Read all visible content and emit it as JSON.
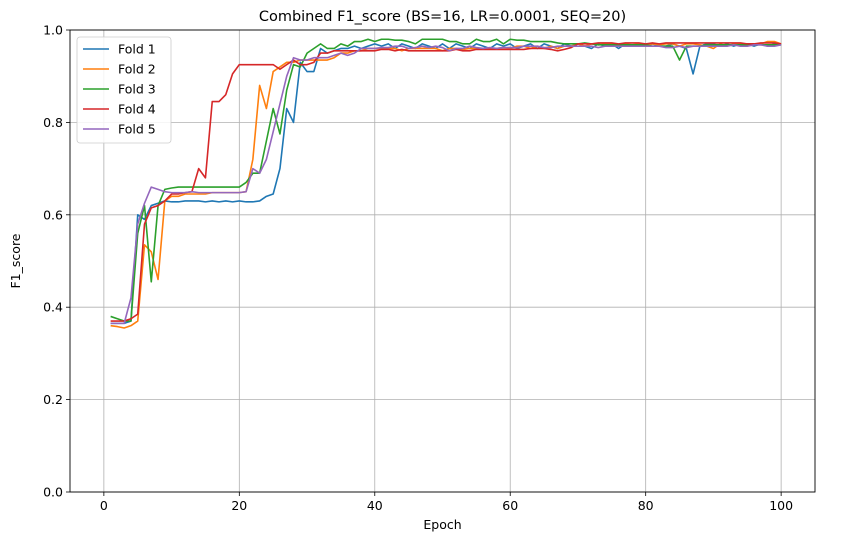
{
  "chart_data": {
    "type": "line",
    "title": "Combined F1_score (BS=16, LR=0.0001, SEQ=20)",
    "xlabel": "Epoch",
    "ylabel": "F1_score",
    "xlim": [
      -5,
      105
    ],
    "ylim": [
      0.0,
      1.0
    ],
    "xticks": [
      0,
      20,
      40,
      60,
      80,
      100
    ],
    "yticks": [
      0.0,
      0.2,
      0.4,
      0.6,
      0.8,
      1.0
    ],
    "ytick_labels": [
      "0.0",
      "0.2",
      "0.4",
      "0.6",
      "0.8",
      "1.0"
    ],
    "xtick_labels": [
      "0",
      "20",
      "40",
      "60",
      "80",
      "100"
    ],
    "grid": true,
    "legend_position": "top-left",
    "series": [
      {
        "name": "Fold 1",
        "color": "#1f77b4",
        "x": [
          1,
          2,
          3,
          4,
          5,
          6,
          7,
          8,
          9,
          10,
          11,
          12,
          13,
          14,
          15,
          16,
          17,
          18,
          19,
          20,
          21,
          22,
          23,
          24,
          25,
          26,
          27,
          28,
          29,
          30,
          31,
          32,
          33,
          34,
          35,
          36,
          37,
          38,
          39,
          40,
          41,
          42,
          43,
          44,
          45,
          46,
          47,
          48,
          49,
          50,
          51,
          52,
          53,
          54,
          55,
          56,
          57,
          58,
          59,
          60,
          61,
          62,
          63,
          64,
          65,
          66,
          67,
          68,
          69,
          70,
          71,
          72,
          73,
          74,
          75,
          76,
          77,
          78,
          79,
          80,
          81,
          82,
          83,
          84,
          85,
          86,
          87,
          88,
          89,
          90,
          91,
          92,
          93,
          94,
          95,
          96,
          97,
          98,
          99,
          100
        ],
        "y": [
          0.365,
          0.365,
          0.365,
          0.37,
          0.6,
          0.59,
          0.62,
          0.625,
          0.63,
          0.628,
          0.628,
          0.63,
          0.63,
          0.63,
          0.628,
          0.63,
          0.628,
          0.63,
          0.628,
          0.63,
          0.628,
          0.628,
          0.63,
          0.64,
          0.645,
          0.7,
          0.83,
          0.8,
          0.93,
          0.91,
          0.91,
          0.96,
          0.95,
          0.955,
          0.96,
          0.96,
          0.965,
          0.96,
          0.965,
          0.97,
          0.965,
          0.97,
          0.96,
          0.97,
          0.965,
          0.96,
          0.97,
          0.965,
          0.96,
          0.97,
          0.96,
          0.97,
          0.965,
          0.96,
          0.97,
          0.965,
          0.96,
          0.97,
          0.965,
          0.97,
          0.96,
          0.965,
          0.97,
          0.96,
          0.97,
          0.965,
          0.96,
          0.97,
          0.965,
          0.97,
          0.965,
          0.96,
          0.97,
          0.965,
          0.97,
          0.96,
          0.97,
          0.965,
          0.97,
          0.965,
          0.97,
          0.965,
          0.965,
          0.97,
          0.965,
          0.96,
          0.905,
          0.965,
          0.97,
          0.97,
          0.965,
          0.97,
          0.965,
          0.97,
          0.97,
          0.965,
          0.97,
          0.965,
          0.97,
          0.97
        ]
      },
      {
        "name": "Fold 2",
        "color": "#ff7f0e",
        "x": [
          1,
          2,
          3,
          4,
          5,
          6,
          7,
          8,
          9,
          10,
          11,
          12,
          13,
          14,
          15,
          16,
          17,
          18,
          19,
          20,
          21,
          22,
          23,
          24,
          25,
          26,
          27,
          28,
          29,
          30,
          31,
          32,
          33,
          34,
          35,
          36,
          37,
          38,
          39,
          40,
          41,
          42,
          43,
          44,
          45,
          46,
          47,
          48,
          49,
          50,
          51,
          52,
          53,
          54,
          55,
          56,
          57,
          58,
          59,
          60,
          61,
          62,
          63,
          64,
          65,
          66,
          67,
          68,
          69,
          70,
          71,
          72,
          73,
          74,
          75,
          76,
          77,
          78,
          79,
          80,
          81,
          82,
          83,
          84,
          85,
          86,
          87,
          88,
          89,
          90,
          91,
          92,
          93,
          94,
          95,
          96,
          97,
          98,
          99,
          100
        ],
        "y": [
          0.36,
          0.358,
          0.355,
          0.36,
          0.37,
          0.535,
          0.52,
          0.46,
          0.63,
          0.64,
          0.64,
          0.645,
          0.645,
          0.645,
          0.645,
          0.648,
          0.648,
          0.648,
          0.648,
          0.648,
          0.65,
          0.72,
          0.88,
          0.83,
          0.91,
          0.92,
          0.93,
          0.93,
          0.935,
          0.935,
          0.935,
          0.935,
          0.935,
          0.94,
          0.95,
          0.95,
          0.955,
          0.955,
          0.96,
          0.96,
          0.96,
          0.96,
          0.96,
          0.955,
          0.96,
          0.96,
          0.96,
          0.96,
          0.96,
          0.955,
          0.96,
          0.96,
          0.958,
          0.96,
          0.96,
          0.96,
          0.96,
          0.96,
          0.962,
          0.96,
          0.965,
          0.965,
          0.96,
          0.965,
          0.96,
          0.965,
          0.96,
          0.965,
          0.965,
          0.97,
          0.965,
          0.97,
          0.968,
          0.97,
          0.97,
          0.968,
          0.97,
          0.968,
          0.97,
          0.968,
          0.97,
          0.968,
          0.97,
          0.97,
          0.965,
          0.97,
          0.97,
          0.968,
          0.965,
          0.96,
          0.97,
          0.965,
          0.97,
          0.97,
          0.97,
          0.968,
          0.97,
          0.975,
          0.975,
          0.97
        ]
      },
      {
        "name": "Fold 3",
        "color": "#2ca02c",
        "x": [
          1,
          2,
          3,
          4,
          5,
          6,
          7,
          8,
          9,
          10,
          11,
          12,
          13,
          14,
          15,
          16,
          17,
          18,
          19,
          20,
          21,
          22,
          23,
          24,
          25,
          26,
          27,
          28,
          29,
          30,
          31,
          32,
          33,
          34,
          35,
          36,
          37,
          38,
          39,
          40,
          41,
          42,
          43,
          44,
          45,
          46,
          47,
          48,
          49,
          50,
          51,
          52,
          53,
          54,
          55,
          56,
          57,
          58,
          59,
          60,
          61,
          62,
          63,
          64,
          65,
          66,
          67,
          68,
          69,
          70,
          71,
          72,
          73,
          74,
          75,
          76,
          77,
          78,
          79,
          80,
          81,
          82,
          83,
          84,
          85,
          86,
          87,
          88,
          89,
          90,
          91,
          92,
          93,
          94,
          95,
          96,
          97,
          98,
          99,
          100
        ],
        "y": [
          0.38,
          0.375,
          0.37,
          0.37,
          0.56,
          0.62,
          0.455,
          0.62,
          0.655,
          0.658,
          0.66,
          0.66,
          0.66,
          0.66,
          0.66,
          0.66,
          0.66,
          0.66,
          0.66,
          0.66,
          0.67,
          0.69,
          0.69,
          0.76,
          0.83,
          0.775,
          0.87,
          0.925,
          0.92,
          0.95,
          0.96,
          0.97,
          0.96,
          0.96,
          0.97,
          0.965,
          0.975,
          0.975,
          0.98,
          0.975,
          0.98,
          0.98,
          0.978,
          0.978,
          0.975,
          0.97,
          0.98,
          0.98,
          0.98,
          0.98,
          0.975,
          0.975,
          0.97,
          0.97,
          0.98,
          0.975,
          0.975,
          0.98,
          0.97,
          0.98,
          0.978,
          0.978,
          0.975,
          0.975,
          0.975,
          0.975,
          0.972,
          0.97,
          0.97,
          0.97,
          0.972,
          0.97,
          0.968,
          0.968,
          0.968,
          0.968,
          0.968,
          0.968,
          0.968,
          0.968,
          0.965,
          0.965,
          0.965,
          0.965,
          0.935,
          0.965,
          0.965,
          0.965,
          0.968,
          0.968,
          0.968,
          0.968,
          0.968,
          0.968,
          0.968,
          0.968,
          0.968,
          0.968,
          0.968,
          0.968
        ]
      },
      {
        "name": "Fold 4",
        "color": "#d62728",
        "x": [
          1,
          2,
          3,
          4,
          5,
          6,
          7,
          8,
          9,
          10,
          11,
          12,
          13,
          14,
          15,
          16,
          17,
          18,
          19,
          20,
          21,
          22,
          23,
          24,
          25,
          26,
          27,
          28,
          29,
          30,
          31,
          32,
          33,
          34,
          35,
          36,
          37,
          38,
          39,
          40,
          41,
          42,
          43,
          44,
          45,
          46,
          47,
          48,
          49,
          50,
          51,
          52,
          53,
          54,
          55,
          56,
          57,
          58,
          59,
          60,
          61,
          62,
          63,
          64,
          65,
          66,
          67,
          68,
          69,
          70,
          71,
          72,
          73,
          74,
          75,
          76,
          77,
          78,
          79,
          80,
          81,
          82,
          83,
          84,
          85,
          86,
          87,
          88,
          89,
          90,
          91,
          92,
          93,
          94,
          95,
          96,
          97,
          98,
          99,
          100
        ],
        "y": [
          0.37,
          0.37,
          0.37,
          0.375,
          0.385,
          0.58,
          0.615,
          0.62,
          0.63,
          0.645,
          0.645,
          0.648,
          0.65,
          0.7,
          0.68,
          0.845,
          0.845,
          0.86,
          0.905,
          0.925,
          0.925,
          0.925,
          0.925,
          0.925,
          0.925,
          0.915,
          0.925,
          0.935,
          0.925,
          0.925,
          0.93,
          0.95,
          0.95,
          0.955,
          0.955,
          0.955,
          0.955,
          0.955,
          0.955,
          0.955,
          0.958,
          0.958,
          0.955,
          0.958,
          0.955,
          0.955,
          0.955,
          0.955,
          0.955,
          0.955,
          0.955,
          0.958,
          0.955,
          0.955,
          0.958,
          0.958,
          0.958,
          0.958,
          0.958,
          0.958,
          0.958,
          0.958,
          0.96,
          0.96,
          0.96,
          0.958,
          0.955,
          0.958,
          0.962,
          0.97,
          0.97,
          0.97,
          0.972,
          0.972,
          0.972,
          0.97,
          0.972,
          0.972,
          0.972,
          0.97,
          0.972,
          0.97,
          0.972,
          0.972,
          0.972,
          0.972,
          0.972,
          0.972,
          0.972,
          0.972,
          0.972,
          0.972,
          0.972,
          0.972,
          0.97,
          0.97,
          0.972,
          0.972,
          0.972,
          0.97
        ]
      },
      {
        "name": "Fold 5",
        "color": "#9467bd",
        "x": [
          1,
          2,
          3,
          4,
          5,
          6,
          7,
          8,
          9,
          10,
          11,
          12,
          13,
          14,
          15,
          16,
          17,
          18,
          19,
          20,
          21,
          22,
          23,
          24,
          25,
          26,
          27,
          28,
          29,
          30,
          31,
          32,
          33,
          34,
          35,
          36,
          37,
          38,
          39,
          40,
          41,
          42,
          43,
          44,
          45,
          46,
          47,
          48,
          49,
          50,
          51,
          52,
          53,
          54,
          55,
          56,
          57,
          58,
          59,
          60,
          61,
          62,
          63,
          64,
          65,
          66,
          67,
          68,
          69,
          70,
          71,
          72,
          73,
          74,
          75,
          76,
          77,
          78,
          79,
          80,
          81,
          82,
          83,
          84,
          85,
          86,
          87,
          88,
          89,
          90,
          91,
          92,
          93,
          94,
          95,
          96,
          97,
          98,
          99,
          100
        ],
        "y": [
          0.365,
          0.365,
          0.365,
          0.42,
          0.58,
          0.625,
          0.66,
          0.655,
          0.65,
          0.648,
          0.648,
          0.648,
          0.65,
          0.648,
          0.648,
          0.648,
          0.648,
          0.648,
          0.648,
          0.648,
          0.65,
          0.7,
          0.69,
          0.72,
          0.78,
          0.84,
          0.9,
          0.94,
          0.935,
          0.935,
          0.94,
          0.94,
          0.94,
          0.945,
          0.95,
          0.945,
          0.95,
          0.96,
          0.96,
          0.96,
          0.962,
          0.962,
          0.965,
          0.965,
          0.96,
          0.962,
          0.965,
          0.962,
          0.965,
          0.962,
          0.955,
          0.96,
          0.96,
          0.965,
          0.962,
          0.96,
          0.962,
          0.96,
          0.962,
          0.962,
          0.962,
          0.965,
          0.965,
          0.965,
          0.962,
          0.962,
          0.965,
          0.965,
          0.965,
          0.965,
          0.965,
          0.965,
          0.962,
          0.965,
          0.965,
          0.965,
          0.965,
          0.965,
          0.965,
          0.965,
          0.965,
          0.965,
          0.962,
          0.962,
          0.965,
          0.962,
          0.965,
          0.965,
          0.965,
          0.965,
          0.965,
          0.965,
          0.968,
          0.965,
          0.965,
          0.968,
          0.968,
          0.965,
          0.965,
          0.968
        ]
      }
    ]
  }
}
